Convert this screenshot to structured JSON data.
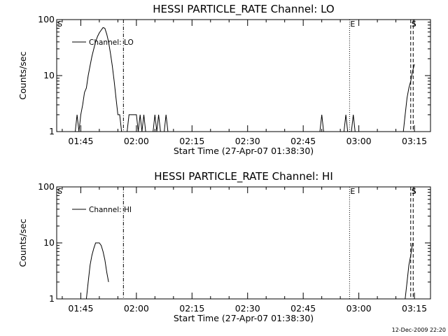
{
  "footer": "12-Dec-2009 22:20",
  "chart_data": [
    {
      "type": "line",
      "title": "HESSI PARTICLE_RATE Channel: LO",
      "xlabel": "Start Time (27-Apr-07 01:38:30)",
      "ylabel": "Counts/sec",
      "y_scale": "log",
      "ylim": [
        1,
        100
      ],
      "yticks": [
        1,
        10,
        100
      ],
      "ytick_labels": [
        "1",
        "10",
        "100"
      ],
      "xlim": [
        "01:38:30",
        "03:19:20"
      ],
      "xticks": [
        "01:45",
        "02:00",
        "02:15",
        "02:30",
        "02:45",
        "03:00",
        "03:15"
      ],
      "legend": {
        "position": "top-left",
        "entries": [
          "Channel: LO"
        ]
      },
      "markers": [
        {
          "label": "S",
          "time": "01:38:30",
          "style": "solid"
        },
        {
          "label": "",
          "time": "01:56:30",
          "style": "dashdot"
        },
        {
          "label": "E",
          "time": "02:57:30",
          "style": "dotted"
        },
        {
          "label": "S",
          "time": "03:14:00",
          "style": "dashed"
        },
        {
          "label": "",
          "time": "03:14:40",
          "style": "dashed"
        }
      ],
      "series": [
        {
          "name": "Channel: LO",
          "segments": [
            [
              [
                "01:43:30",
                1
              ],
              [
                "01:44:00",
                2
              ],
              [
                "01:44:30",
                1
              ],
              [
                "01:45:00",
                2
              ],
              [
                "01:45:30",
                3
              ],
              [
                "01:46:00",
                5
              ],
              [
                "01:46:30",
                6
              ],
              [
                "01:47:00",
                10
              ],
              [
                "01:47:30",
                15
              ],
              [
                "01:48:00",
                22
              ],
              [
                "01:48:30",
                30
              ],
              [
                "01:49:00",
                40
              ],
              [
                "01:49:30",
                50
              ],
              [
                "01:50:00",
                58
              ],
              [
                "01:50:30",
                65
              ],
              [
                "01:51:00",
                72
              ],
              [
                "01:51:30",
                70
              ],
              [
                "01:52:00",
                55
              ],
              [
                "01:52:30",
                40
              ],
              [
                "01:53:00",
                25
              ],
              [
                "01:53:30",
                15
              ],
              [
                "01:54:00",
                8
              ],
              [
                "01:54:30",
                4
              ],
              [
                "01:55:00",
                2
              ],
              [
                "01:55:30",
                2
              ],
              [
                "01:56:00",
                1
              ],
              [
                "01:56:30",
                1
              ]
            ],
            [
              [
                "01:57:30",
                1
              ],
              [
                "01:58:00",
                2
              ],
              [
                "01:58:30",
                2
              ],
              [
                "02:00:00",
                2
              ],
              [
                "02:00:30",
                1
              ],
              [
                "02:01:00",
                2
              ],
              [
                "02:01:30",
                1
              ],
              [
                "02:02:00",
                2
              ],
              [
                "02:02:30",
                1
              ]
            ],
            [
              [
                "02:04:30",
                1
              ],
              [
                "02:05:00",
                2
              ],
              [
                "02:05:30",
                1
              ],
              [
                "02:06:00",
                2
              ],
              [
                "02:06:30",
                1
              ]
            ],
            [
              [
                "02:07:30",
                1
              ],
              [
                "02:08:00",
                2
              ],
              [
                "02:08:30",
                1
              ]
            ],
            [
              [
                "02:49:30",
                1
              ],
              [
                "02:50:00",
                2
              ],
              [
                "02:50:30",
                1
              ]
            ],
            [
              [
                "02:56:00",
                1
              ],
              [
                "02:56:30",
                2
              ],
              [
                "02:57:00",
                1
              ]
            ],
            [
              [
                "02:58:00",
                1
              ],
              [
                "02:58:30",
                2
              ],
              [
                "02:59:00",
                1
              ]
            ],
            [
              [
                "03:12:00",
                1
              ],
              [
                "03:12:30",
                2
              ],
              [
                "03:13:00",
                4
              ],
              [
                "03:13:30",
                6
              ],
              [
                "03:14:00",
                8
              ],
              [
                "03:14:30",
                12
              ],
              [
                "03:15:00",
                16
              ]
            ]
          ]
        }
      ]
    },
    {
      "type": "line",
      "title": "HESSI PARTICLE_RATE Channel: HI",
      "xlabel": "Start Time (27-Apr-07 01:38:30)",
      "ylabel": "Counts/sec",
      "y_scale": "log",
      "ylim": [
        1,
        100
      ],
      "yticks": [
        1,
        10,
        100
      ],
      "ytick_labels": [
        "1",
        "10",
        "100"
      ],
      "xlim": [
        "01:38:30",
        "03:19:20"
      ],
      "xticks": [
        "01:45",
        "02:00",
        "02:15",
        "02:30",
        "02:45",
        "03:00",
        "03:15"
      ],
      "legend": {
        "position": "top-left",
        "entries": [
          "Channel: HI"
        ]
      },
      "markers": [
        {
          "label": "S",
          "time": "01:38:30",
          "style": "solid"
        },
        {
          "label": "",
          "time": "01:56:30",
          "style": "dashdot"
        },
        {
          "label": "E",
          "time": "02:57:30",
          "style": "dotted"
        },
        {
          "label": "S",
          "time": "03:14:00",
          "style": "dashed"
        },
        {
          "label": "",
          "time": "03:14:40",
          "style": "dashed"
        }
      ],
      "series": [
        {
          "name": "Channel: HI",
          "segments": [
            [
              [
                "01:46:30",
                1
              ],
              [
                "01:47:00",
                2
              ],
              [
                "01:47:30",
                4
              ],
              [
                "01:48:00",
                6
              ],
              [
                "01:48:30",
                8
              ],
              [
                "01:49:00",
                10
              ],
              [
                "01:49:30",
                10
              ],
              [
                "01:50:00",
                10
              ],
              [
                "01:50:30",
                9
              ],
              [
                "01:51:00",
                7
              ],
              [
                "01:51:30",
                5
              ],
              [
                "01:52:00",
                3
              ],
              [
                "01:52:30",
                2
              ]
            ],
            [
              [
                "03:12:30",
                1
              ],
              [
                "03:13:00",
                2
              ],
              [
                "03:13:30",
                4
              ],
              [
                "03:14:00",
                6
              ],
              [
                "03:14:30",
                10
              ]
            ]
          ]
        }
      ]
    }
  ]
}
